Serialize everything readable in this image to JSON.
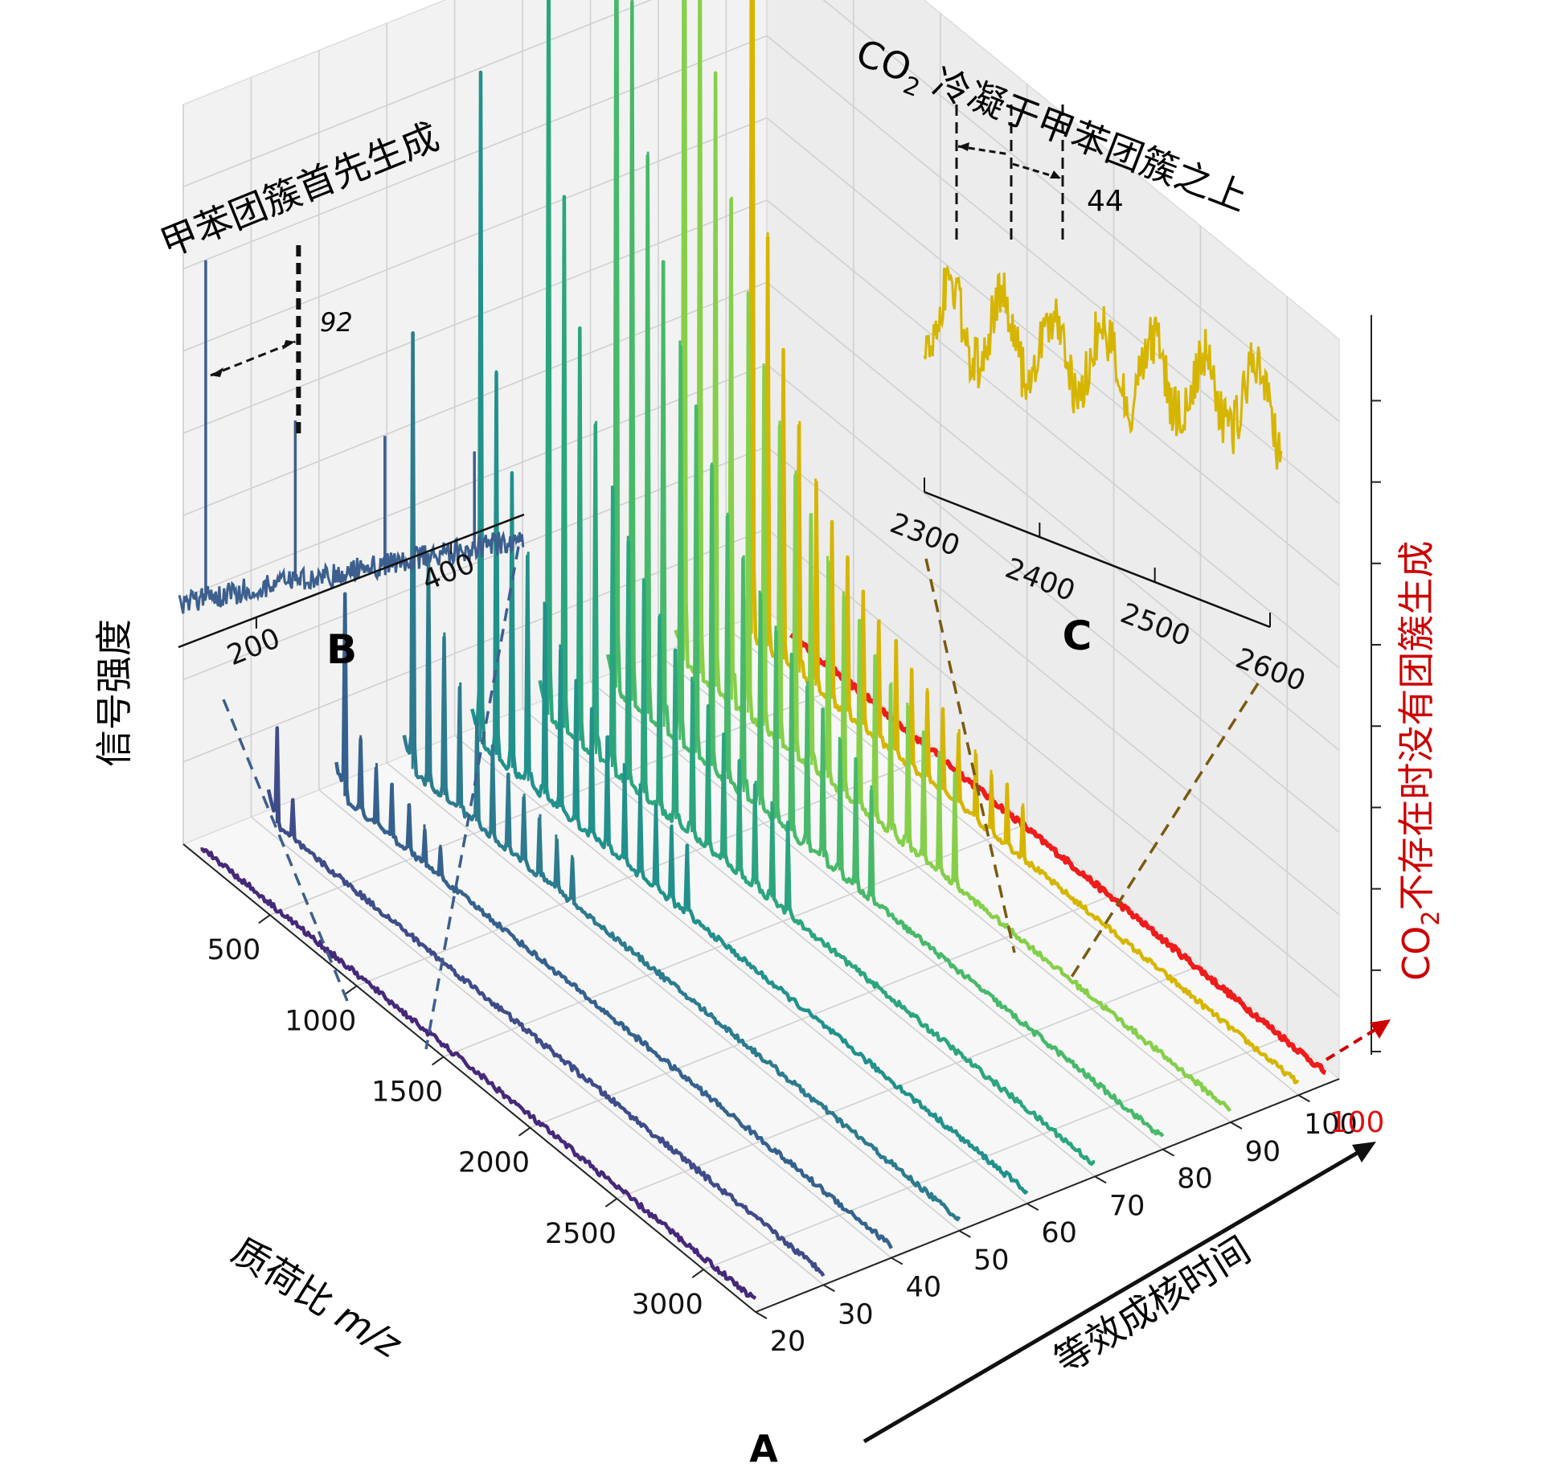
{
  "chart_data": {
    "type": "line",
    "subtype": "3d-waterfall-spectra",
    "panel_labels": {
      "main": "A",
      "inset_left": "B",
      "inset_right": "C"
    },
    "axes": {
      "x": {
        "label": "质荷比 m/z",
        "label_main": "质荷比",
        "label_italic": "m/z",
        "ticks": [
          500,
          1000,
          1500,
          2000,
          2500,
          3000
        ],
        "range": [
          0,
          3300
        ]
      },
      "y": {
        "label": "等效成核时间",
        "ticks": [
          20,
          30,
          40,
          50,
          60,
          70,
          80,
          90,
          100
        ],
        "range": [
          20,
          100
        ]
      },
      "z": {
        "label": "信号强度"
      }
    },
    "series": [
      {
        "name": "t=20",
        "t": 20,
        "color": "#46287a",
        "peak_heights": []
      },
      {
        "name": "t=30",
        "t": 30,
        "color": "#3e4c8a",
        "peak_heights": [
          0.12,
          0.05
        ]
      },
      {
        "name": "t=40",
        "t": 40,
        "color": "#35618e",
        "peak_heights": [
          0.27,
          0.1,
          0.08,
          0.07,
          0.06,
          0.05,
          0.04
        ]
      },
      {
        "name": "t=50",
        "t": 50,
        "color": "#2c7b8e",
        "peak_heights": [
          0.58,
          0.31,
          0.22,
          0.17,
          0.14,
          0.12,
          0.1,
          0.09,
          0.08,
          0.07,
          0.06
        ]
      },
      {
        "name": "t=60",
        "t": 60,
        "color": "#21918c",
        "peak_heights": [
          0.9,
          0.52,
          0.4,
          0.31,
          0.26,
          0.22,
          0.19,
          0.17,
          0.15,
          0.13,
          0.12,
          0.11,
          0.1,
          0.09
        ]
      },
      {
        "name": "t=70",
        "t": 70,
        "color": "#2ba57f",
        "peak_heights": [
          1.08,
          0.72,
          0.56,
          0.45,
          0.38,
          0.33,
          0.29,
          0.26,
          0.23,
          0.21,
          0.19,
          0.17,
          0.15,
          0.14,
          0.13,
          0.12
        ]
      },
      {
        "name": "t=80",
        "t": 80,
        "color": "#47b96a",
        "peak_heights": [
          1.25,
          0.95,
          0.76,
          0.63,
          0.54,
          0.47,
          0.41,
          0.36,
          0.32,
          0.29,
          0.26,
          0.24,
          0.22,
          0.2,
          0.18,
          0.17,
          0.15
        ]
      },
      {
        "name": "t=90",
        "t": 90,
        "color": "#86cf4a",
        "peak_heights": [
          1.42,
          1.05,
          0.83,
          0.68,
          0.57,
          0.49,
          0.43,
          0.38,
          0.34,
          0.3,
          0.27,
          0.25,
          0.22,
          0.2,
          0.19,
          0.17,
          0.16,
          0.15
        ]
      },
      {
        "name": "t=100",
        "t": 100,
        "color": "#d6b500",
        "peak_heights": [
          1.55,
          0.56,
          0.42,
          0.34,
          0.28,
          0.24,
          0.21,
          0.18,
          0.16,
          0.15,
          0.13,
          0.12,
          0.11,
          0.1,
          0.09,
          0.08,
          0.08,
          0.07
        ]
      },
      {
        "name": "t=100 (CO2不存在)",
        "t": 100,
        "color": "#ee1c1c",
        "peak_heights": []
      }
    ],
    "insets": [
      {
        "label": "B",
        "title": "甲苯团簇首先生成",
        "color": "#3c5f8e",
        "x_ticks": [
          200,
          400
        ],
        "annotation": "92",
        "peaks_mz": [
          148,
          240,
          332,
          424
        ]
      },
      {
        "label": "C",
        "title_prefix": "CO",
        "title_sub": "2",
        "title_rest": " 冷凝于甲苯团簇之上",
        "color": "#d6b500",
        "x_ticks": [
          2300,
          2400,
          2500,
          2600
        ],
        "annotation": "44"
      }
    ],
    "annotations": {
      "red_label_prefix": "CO",
      "red_label_sub": "2",
      "red_label_rest": "不存在时没有团簇生成",
      "red_extra_tick": "100",
      "red_color": "#cc0000"
    }
  }
}
